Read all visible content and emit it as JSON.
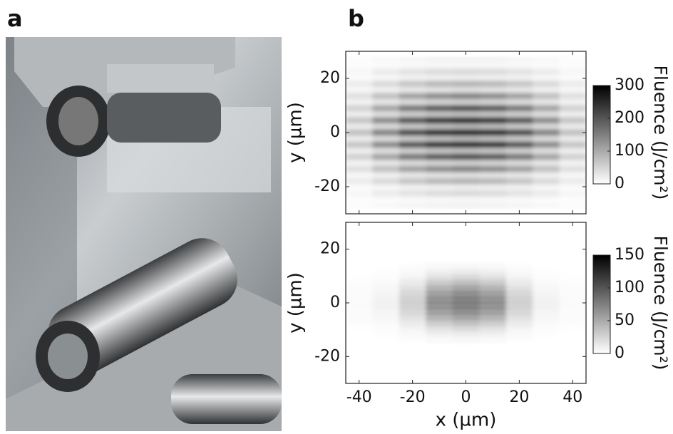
{
  "panel_labels": [
    "a",
    "b"
  ],
  "chart_data": [
    {
      "type": "heatmap",
      "ylabel": "y (µm)",
      "colorbar_label": "Fluence (J/cm²)",
      "xlim": [
        -45,
        45
      ],
      "ylim": [
        -30,
        30
      ],
      "xticks": [
        -40,
        -20,
        0,
        20,
        40
      ],
      "yticks": [
        -20,
        0,
        20
      ],
      "clim": [
        0,
        300
      ],
      "cticks": [
        0,
        100,
        200,
        300
      ],
      "x": [
        -40,
        -30,
        -20,
        -10,
        0,
        10,
        20,
        30,
        40
      ],
      "y": [
        27,
        24.75,
        22.5,
        20.25,
        18,
        15.75,
        13.5,
        11.25,
        9,
        6.75,
        4.5,
        2.25,
        0,
        -2.25,
        -4.5,
        -6.75,
        -9,
        -11.25,
        -13.5,
        -15.75,
        -18,
        -20.25,
        -22.5,
        -24.75,
        -27
      ],
      "z": [
        [
          4,
          8,
          11,
          14,
          15,
          14,
          11,
          8,
          4
        ],
        [
          2,
          5,
          7,
          8,
          9,
          8,
          7,
          5,
          2
        ],
        [
          11,
          23,
          34,
          41,
          45,
          41,
          34,
          23,
          11
        ],
        [
          5,
          10,
          15,
          18,
          20,
          18,
          15,
          10,
          5
        ],
        [
          23,
          45,
          68,
          83,
          90,
          83,
          68,
          45,
          23
        ],
        [
          9,
          18,
          27,
          33,
          36,
          33,
          27,
          18,
          9
        ],
        [
          38,
          75,
          113,
          138,
          150,
          138,
          113,
          75,
          38
        ],
        [
          14,
          28,
          41,
          51,
          55,
          51,
          41,
          28,
          14
        ],
        [
          55,
          110,
          165,
          202,
          220,
          202,
          165,
          110,
          55
        ],
        [
          19,
          38,
          56,
          69,
          75,
          69,
          56,
          38,
          19
        ],
        [
          70,
          140,
          210,
          258,
          280,
          258,
          210,
          140,
          70
        ],
        [
          22,
          44,
          65,
          80,
          87,
          80,
          65,
          44,
          22
        ],
        [
          75,
          150,
          225,
          276,
          300,
          276,
          225,
          150,
          75
        ],
        [
          22,
          44,
          65,
          80,
          87,
          80,
          65,
          44,
          22
        ],
        [
          70,
          140,
          210,
          258,
          280,
          258,
          210,
          140,
          70
        ],
        [
          19,
          38,
          56,
          69,
          75,
          69,
          56,
          38,
          19
        ],
        [
          55,
          110,
          165,
          202,
          220,
          202,
          165,
          110,
          55
        ],
        [
          14,
          28,
          41,
          51,
          55,
          51,
          41,
          28,
          14
        ],
        [
          38,
          75,
          113,
          138,
          150,
          138,
          113,
          75,
          38
        ],
        [
          9,
          18,
          27,
          33,
          36,
          33,
          27,
          18,
          9
        ],
        [
          23,
          45,
          68,
          83,
          90,
          83,
          68,
          45,
          23
        ],
        [
          5,
          10,
          15,
          18,
          20,
          18,
          15,
          10,
          5
        ],
        [
          11,
          23,
          34,
          41,
          45,
          41,
          34,
          23,
          11
        ],
        [
          2,
          5,
          7,
          8,
          9,
          8,
          7,
          5,
          2
        ],
        [
          4,
          8,
          11,
          14,
          15,
          14,
          11,
          8,
          4
        ]
      ]
    },
    {
      "type": "heatmap",
      "xlabel": "x (µm)",
      "ylabel": "y (µm)",
      "colorbar_label": "Fluence (J/cm²)",
      "xlim": [
        -45,
        45
      ],
      "ylim": [
        -30,
        30
      ],
      "xticks": [
        -40,
        -20,
        0,
        20,
        40
      ],
      "yticks": [
        -20,
        0,
        20
      ],
      "clim": [
        0,
        150
      ],
      "cticks": [
        0,
        50,
        100,
        150
      ],
      "x": [
        -40,
        -30,
        -20,
        -10,
        0,
        10,
        20,
        30,
        40
      ],
      "y": [
        15,
        14,
        13,
        12,
        11,
        10,
        9,
        8,
        7,
        6,
        5,
        4,
        3,
        2,
        1,
        0,
        -1,
        -2,
        -3,
        -4,
        -5,
        -6,
        -7,
        -8,
        -9,
        -10,
        -11,
        -12,
        -13,
        -14,
        -15
      ],
      "z": [
        [
          0,
          0,
          0,
          1,
          1,
          1,
          0,
          0,
          0
        ],
        [
          0,
          0,
          2,
          5,
          6,
          5,
          2,
          0,
          0
        ],
        [
          0,
          0,
          1,
          2,
          3,
          2,
          1,
          0,
          0
        ],
        [
          0,
          1,
          5,
          12,
          15,
          12,
          5,
          1,
          0
        ],
        [
          0,
          1,
          2,
          6,
          7,
          6,
          2,
          1,
          0
        ],
        [
          1,
          2,
          9,
          24,
          30,
          24,
          9,
          2,
          1
        ],
        [
          0,
          1,
          4,
          10,
          13,
          10,
          4,
          1,
          0
        ],
        [
          2,
          4,
          17,
          44,
          55,
          44,
          17,
          4,
          2
        ],
        [
          1,
          2,
          6,
          17,
          21,
          17,
          6,
          2,
          1
        ],
        [
          3,
          7,
          26,
          68,
          85,
          68,
          26,
          7,
          3
        ],
        [
          1,
          2,
          9,
          24,
          30,
          24,
          9,
          2,
          1
        ],
        [
          3,
          9,
          35,
          92,
          115,
          92,
          35,
          9,
          3
        ],
        [
          1,
          3,
          11,
          30,
          38,
          30,
          11,
          3,
          1
        ],
        [
          4,
          11,
          42,
          112,
          140,
          112,
          42,
          11,
          4
        ],
        [
          1,
          4,
          13,
          35,
          44,
          35,
          13,
          4,
          1
        ],
        [
          5,
          12,
          45,
          120,
          150,
          120,
          45,
          12,
          5
        ],
        [
          1,
          4,
          13,
          35,
          44,
          35,
          13,
          4,
          1
        ],
        [
          4,
          11,
          42,
          112,
          140,
          112,
          42,
          11,
          4
        ],
        [
          1,
          3,
          11,
          30,
          38,
          30,
          11,
          3,
          1
        ],
        [
          3,
          9,
          35,
          92,
          115,
          92,
          35,
          9,
          3
        ],
        [
          1,
          2,
          9,
          24,
          30,
          24,
          9,
          2,
          1
        ],
        [
          3,
          7,
          26,
          68,
          85,
          68,
          26,
          7,
          3
        ],
        [
          1,
          2,
          6,
          17,
          21,
          17,
          6,
          2,
          1
        ],
        [
          2,
          4,
          17,
          44,
          55,
          44,
          17,
          4,
          2
        ],
        [
          0,
          1,
          4,
          10,
          13,
          10,
          4,
          1,
          0
        ],
        [
          1,
          2,
          9,
          24,
          30,
          24,
          9,
          2,
          1
        ],
        [
          0,
          1,
          2,
          6,
          7,
          6,
          2,
          1,
          0
        ],
        [
          0,
          1,
          5,
          12,
          15,
          12,
          5,
          1,
          0
        ],
        [
          0,
          0,
          1,
          2,
          3,
          2,
          1,
          0,
          0
        ],
        [
          0,
          0,
          2,
          5,
          6,
          5,
          2,
          0,
          0
        ],
        [
          0,
          0,
          0,
          1,
          1,
          1,
          0,
          0,
          0
        ]
      ]
    }
  ]
}
